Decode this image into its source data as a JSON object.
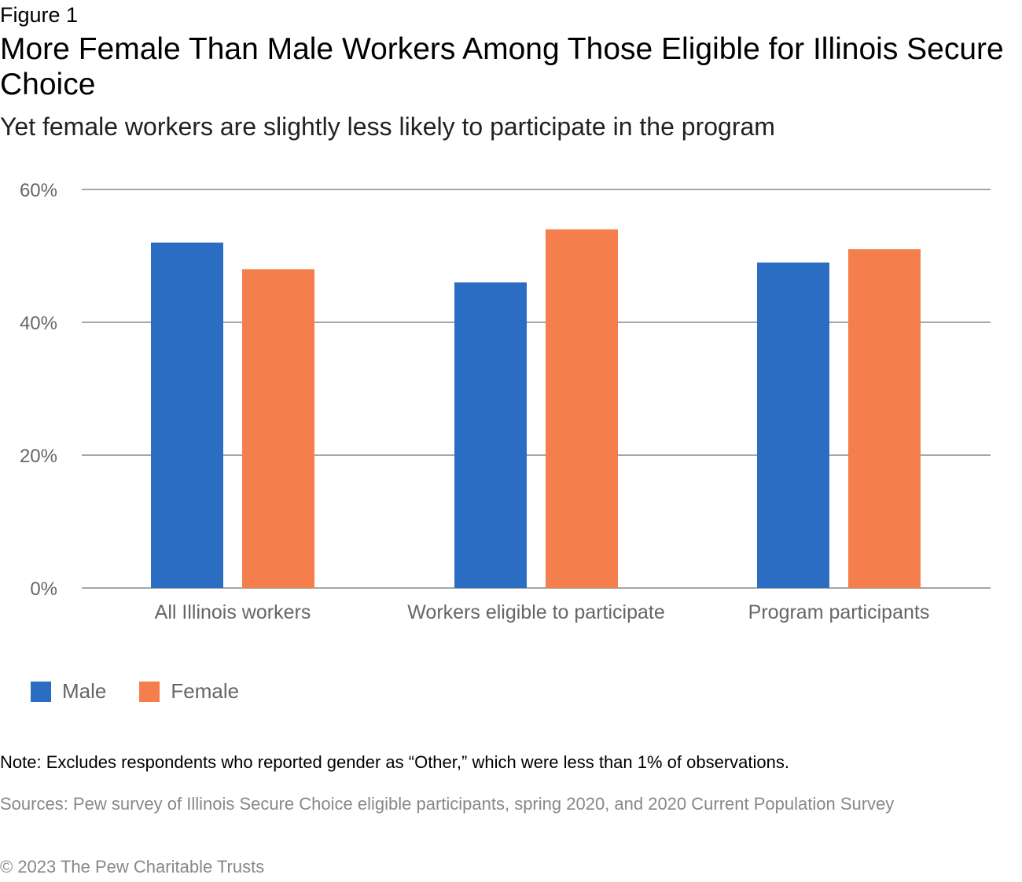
{
  "figure_label": "Figure 1",
  "title": "More Female Than Male Workers Among Those Eligible for Illinois Secure Choice",
  "subtitle": "Yet female workers are slightly less likely to participate in the program",
  "colors": {
    "male": "#2b6dc2",
    "female": "#f47f4c",
    "grid": "#a6a6a6"
  },
  "chart_data": {
    "type": "bar",
    "title": "More Female Than Male Workers Among Those Eligible for Illinois Secure Choice",
    "subtitle": "Yet female workers are slightly less likely to participate in the program",
    "categories": [
      "All Illinois workers",
      "Workers eligible to participate",
      "Program participants"
    ],
    "series": [
      {
        "name": "Male",
        "color": "#2b6dc2",
        "values": [
          52,
          46,
          49
        ]
      },
      {
        "name": "Female",
        "color": "#f47f4c",
        "values": [
          48,
          54,
          51
        ]
      }
    ],
    "xlabel": "",
    "ylabel": "",
    "ylim": [
      0,
      60
    ],
    "yticks": [
      0,
      20,
      40,
      60
    ],
    "ytick_labels": [
      "0%",
      "20%",
      "40%",
      "60%"
    ],
    "grid": true,
    "legend_position": "bottom-left"
  },
  "legend": [
    {
      "label": "Male"
    },
    {
      "label": "Female"
    }
  ],
  "note": "Note: Excludes respondents who reported gender as “Other,” which were less than 1% of observations.",
  "sources": "Sources: Pew survey of Illinois Secure Choice eligible participants, spring 2020, and 2020 Current Population Survey",
  "copyright": "© 2023 The Pew Charitable Trusts"
}
